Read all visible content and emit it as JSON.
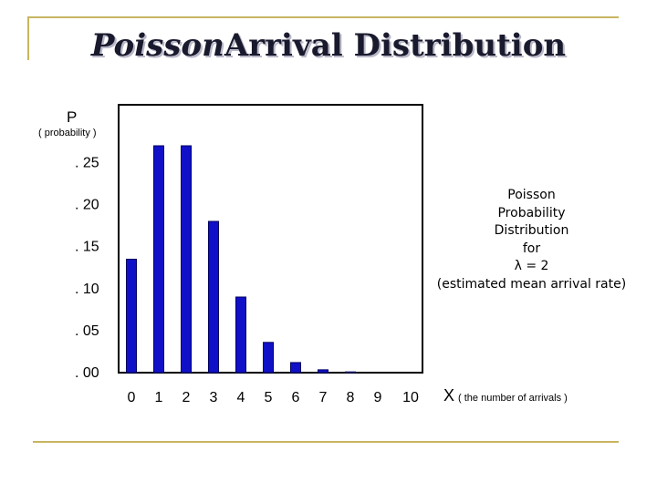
{
  "page": {
    "title_italic": "Poisson",
    "title_rest": "Arrival Distribution"
  },
  "annotation": {
    "lines": [
      "Poisson",
      "Probability",
      "Distribution",
      "for",
      "λ = 2",
      "(estimated mean arrival rate)"
    ]
  },
  "colors": {
    "bar": "#1010c8",
    "bar_stroke": "#000060",
    "rule": "#c8b560"
  },
  "chart_data": {
    "type": "bar",
    "categories": [
      "0",
      "1",
      "2",
      "3",
      "4",
      "5",
      "6",
      "7",
      "8",
      "9",
      "10"
    ],
    "values": [
      0.135,
      0.27,
      0.27,
      0.18,
      0.09,
      0.036,
      0.012,
      0.0034,
      0.0009,
      0,
      0
    ],
    "ylim": [
      0,
      0.275
    ],
    "yticks": [
      0,
      0.05,
      0.1,
      0.15,
      0.2,
      0.25
    ],
    "ytick_labels": [
      ". 00",
      ". 05",
      ". 10",
      ". 15",
      ". 20",
      ". 25"
    ],
    "ylabel": "P",
    "ylabel_sub": "( probability )",
    "xlabel": "X",
    "xlabel_sub": "( the number of arrivals )",
    "grid": false,
    "legend": "none"
  }
}
